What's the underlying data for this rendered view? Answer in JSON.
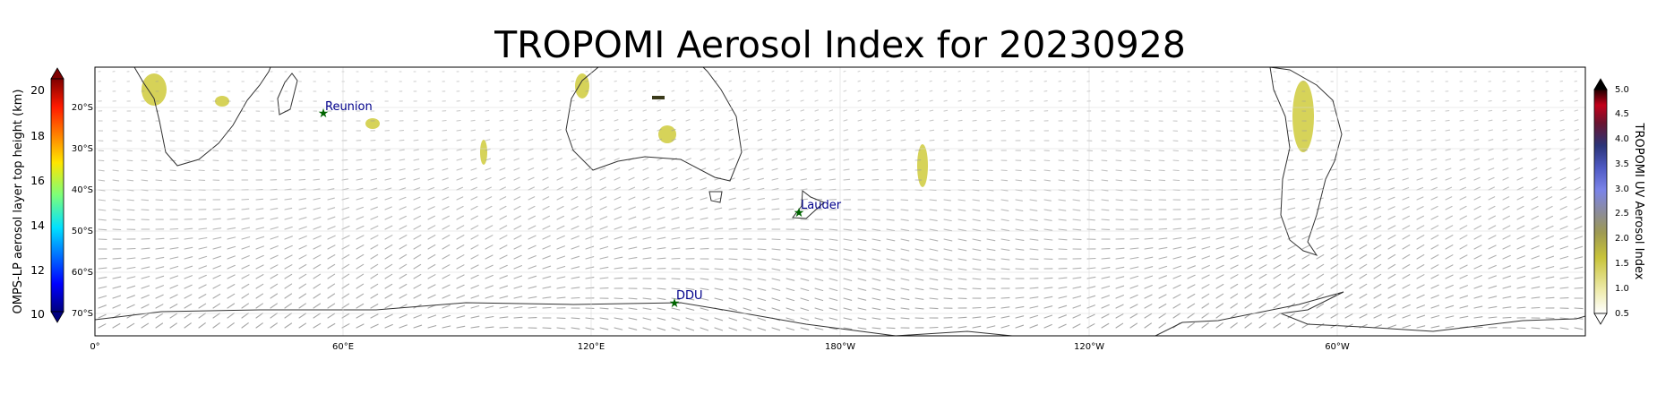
{
  "title": "TROPOMI Aerosol Index for 20230928",
  "map": {
    "x_ticks": [
      "0°",
      "60°E",
      "120°E",
      "180°W",
      "120°W",
      "60°W"
    ],
    "y_ticks": [
      "20°S",
      "30°S",
      "40°S",
      "50°S",
      "60°S",
      "70°S"
    ],
    "land_edge_color": "#333333",
    "wind_arrow_color": "#9a9a9a",
    "stations": [
      {
        "name": "Reunion",
        "lon": 55.4,
        "lat": -21.0
      },
      {
        "name": "Lauder",
        "lon": 169.7,
        "lat": -45.0
      },
      {
        "name": "DDU",
        "lon": 140.0,
        "lat": -66.7
      }
    ],
    "station_marker_color": "#006400",
    "station_label_color": "#00008b"
  },
  "colorbar_left": {
    "label": "OMPS-LP aerosol layer top height (km)",
    "ticks": [
      "20",
      "18",
      "16",
      "14",
      "12",
      "10"
    ],
    "range": [
      9.5,
      20.5
    ],
    "colormap": "jet"
  },
  "colorbar_right": {
    "label": "TROPOMI UV Aerosol Index",
    "ticks": [
      "5.0",
      "4.5",
      "4.0",
      "3.5",
      "3.0",
      "2.5",
      "2.0",
      "1.5",
      "1.0",
      "0.5"
    ],
    "range": [
      0.5,
      5.0
    ],
    "colors": [
      "#ffffff",
      "#e6e38a",
      "#c9c43a",
      "#a6a640",
      "#8a8a8a",
      "#7a86e6",
      "#5a64c8",
      "#2e3a8c",
      "#6b1a2e",
      "#c00018",
      "#000000"
    ]
  }
}
